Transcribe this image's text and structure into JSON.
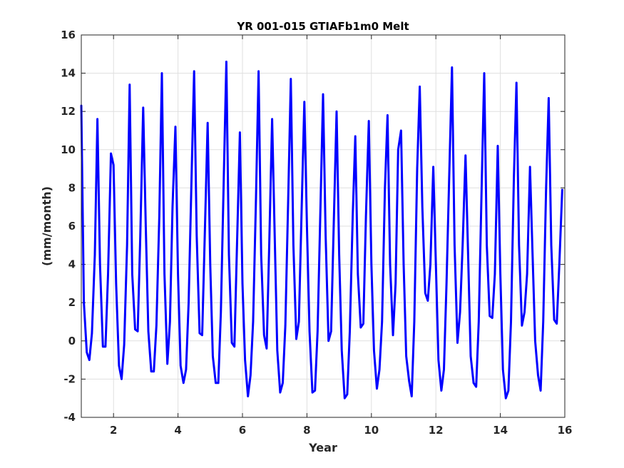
{
  "chart_data": {
    "type": "line",
    "title": "YR 001-015 GTIAFb1m0 Melt",
    "xlabel": "Year",
    "ylabel": "(mm/month)",
    "xlim": [
      1,
      16
    ],
    "ylim": [
      -4,
      16
    ],
    "xticks": [
      "2",
      "4",
      "6",
      "8",
      "10",
      "12",
      "14",
      "16"
    ],
    "yticks": [
      "-4",
      "-2",
      "0",
      "2",
      "4",
      "6",
      "8",
      "10",
      "12",
      "14",
      "16"
    ],
    "grid": true,
    "series": [
      {
        "color": "#0000ff",
        "x": [
          1.0,
          1.08,
          1.17,
          1.25,
          1.33,
          1.42,
          1.5,
          1.58,
          1.67,
          1.75,
          1.83,
          1.92,
          2.0,
          2.08,
          2.17,
          2.25,
          2.33,
          2.42,
          2.5,
          2.58,
          2.67,
          2.75,
          2.83,
          2.92,
          3.0,
          3.08,
          3.17,
          3.25,
          3.33,
          3.42,
          3.5,
          3.58,
          3.67,
          3.75,
          3.83,
          3.92,
          4.0,
          4.08,
          4.17,
          4.25,
          4.33,
          4.42,
          4.5,
          4.58,
          4.67,
          4.75,
          4.83,
          4.92,
          5.0,
          5.08,
          5.17,
          5.25,
          5.33,
          5.42,
          5.5,
          5.58,
          5.67,
          5.75,
          5.83,
          5.92,
          6.0,
          6.08,
          6.17,
          6.25,
          6.33,
          6.42,
          6.5,
          6.58,
          6.67,
          6.75,
          6.83,
          6.92,
          7.0,
          7.08,
          7.17,
          7.25,
          7.33,
          7.42,
          7.5,
          7.58,
          7.67,
          7.75,
          7.83,
          7.92,
          8.0,
          8.08,
          8.17,
          8.25,
          8.33,
          8.42,
          8.5,
          8.58,
          8.67,
          8.75,
          8.83,
          8.92,
          9.0,
          9.08,
          9.17,
          9.25,
          9.33,
          9.42,
          9.5,
          9.58,
          9.67,
          9.75,
          9.83,
          9.92,
          10.0,
          10.08,
          10.17,
          10.25,
          10.33,
          10.42,
          10.5,
          10.58,
          10.67,
          10.75,
          10.83,
          10.92,
          11.0,
          11.08,
          11.17,
          11.25,
          11.33,
          11.42,
          11.5,
          11.58,
          11.67,
          11.75,
          11.83,
          11.92,
          12.0,
          12.08,
          12.17,
          12.25,
          12.33,
          12.42,
          12.5,
          12.58,
          12.67,
          12.75,
          12.83,
          12.92,
          13.0,
          13.08,
          13.17,
          13.25,
          13.33,
          13.42,
          13.5,
          13.58,
          13.67,
          13.75,
          13.83,
          13.92,
          14.0,
          14.08,
          14.17,
          14.25,
          14.33,
          14.42,
          14.5,
          14.58,
          14.67,
          14.75,
          14.83,
          14.92,
          15.0,
          15.08,
          15.17,
          15.25,
          15.33,
          15.42,
          15.5,
          15.58,
          15.67,
          15.75,
          15.83,
          15.92
        ],
        "y": [
          12.3,
          2.0,
          -0.6,
          -1.0,
          0.4,
          4.5,
          11.6,
          4.0,
          -0.3,
          -0.3,
          3.5,
          9.8,
          9.2,
          3.0,
          -1.3,
          -2.0,
          -0.2,
          5.0,
          13.4,
          3.5,
          0.6,
          0.5,
          5.5,
          12.2,
          6.0,
          0.5,
          -1.6,
          -1.6,
          0.8,
          6.5,
          14.0,
          3.5,
          -1.2,
          1.0,
          7.0,
          11.2,
          3.5,
          -1.3,
          -2.2,
          -1.5,
          2.0,
          8.5,
          14.1,
          5.5,
          0.4,
          0.3,
          5.5,
          11.4,
          4.0,
          -0.8,
          -2.2,
          -2.2,
          1.5,
          8.5,
          14.6,
          4.5,
          -0.1,
          -0.3,
          5.0,
          10.9,
          3.0,
          -1.0,
          -2.9,
          -1.8,
          1.0,
          7.5,
          14.1,
          4.5,
          0.3,
          -0.4,
          5.0,
          11.6,
          5.5,
          -0.5,
          -2.7,
          -2.2,
          0.8,
          7.5,
          13.7,
          5.0,
          0.1,
          1.0,
          6.5,
          12.5,
          6.0,
          0.5,
          -2.7,
          -2.6,
          0.5,
          7.0,
          12.9,
          5.5,
          0.0,
          0.5,
          6.0,
          12.0,
          4.5,
          -0.5,
          -3.0,
          -2.8,
          0.5,
          6.5,
          10.7,
          3.5,
          0.7,
          0.9,
          6.5,
          11.5,
          4.0,
          -0.5,
          -2.5,
          -1.5,
          1.0,
          8.0,
          11.8,
          4.0,
          0.3,
          3.0,
          10.0,
          11.0,
          4.0,
          -0.8,
          -2.1,
          -2.9,
          1.0,
          9.0,
          13.3,
          7.0,
          2.5,
          2.1,
          4.0,
          9.1,
          4.0,
          -1.0,
          -2.6,
          -1.5,
          3.0,
          9.0,
          14.3,
          5.0,
          -0.1,
          1.5,
          5.0,
          9.7,
          4.5,
          -0.8,
          -2.2,
          -2.4,
          1.0,
          8.0,
          14.0,
          5.0,
          1.3,
          1.2,
          3.5,
          10.2,
          3.5,
          -1.5,
          -3.0,
          -2.6,
          1.0,
          8.5,
          13.5,
          5.0,
          0.8,
          1.5,
          3.5,
          9.1,
          4.5,
          0.0,
          -1.8,
          -2.6,
          1.0,
          8.0,
          12.7,
          5.0,
          1.1,
          0.9,
          4.0,
          7.9
        ]
      }
    ]
  }
}
